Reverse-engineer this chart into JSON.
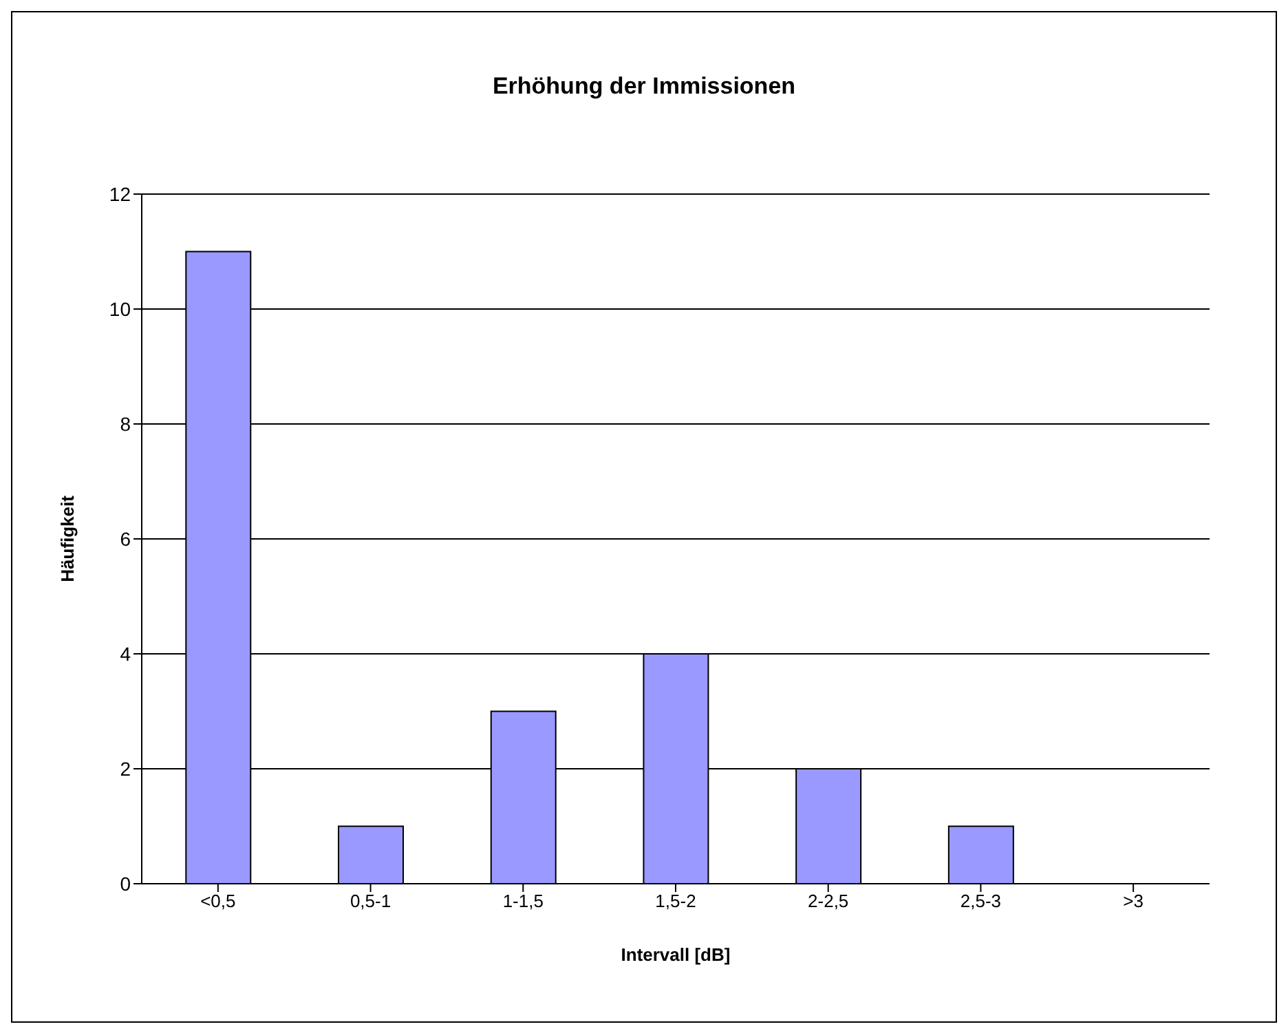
{
  "chart_data": {
    "type": "bar",
    "title": "Erhöhung der Immissionen",
    "xlabel": "Intervall [dB]",
    "ylabel": "Häufigkeit",
    "categories": [
      "<0,5",
      "0,5-1",
      "1-1,5",
      "1,5-2",
      "2-2,5",
      "2,5-3",
      ">3"
    ],
    "values": [
      11,
      1,
      3,
      4,
      2,
      1,
      0
    ],
    "color": "#9999ff",
    "ylim": [
      0,
      12
    ],
    "yticks": [
      0,
      2,
      4,
      6,
      8,
      10,
      12
    ],
    "grid": "y"
  }
}
